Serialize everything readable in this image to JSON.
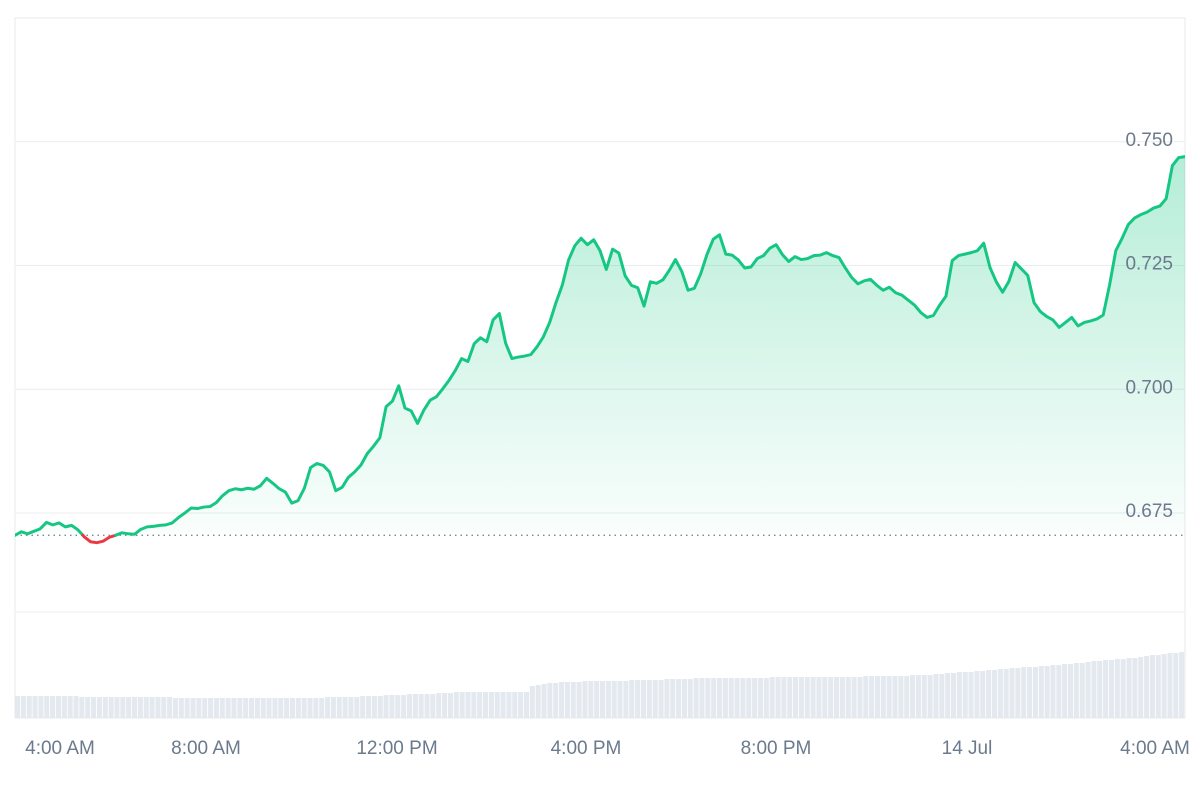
{
  "chart_data": {
    "type": "line",
    "baseline": 0.6705,
    "ylim": [
      0.655,
      0.775
    ],
    "y_ticks": [
      {
        "value": 0.675,
        "label": "0.675"
      },
      {
        "value": 0.7,
        "label": "0.700"
      },
      {
        "value": 0.725,
        "label": "0.725"
      },
      {
        "value": 0.75,
        "label": "0.750"
      }
    ],
    "x_ticks": [
      {
        "label": "4:00 AM"
      },
      {
        "label": "8:00 AM"
      },
      {
        "label": "12:00 PM"
      },
      {
        "label": "4:00 PM"
      },
      {
        "label": "8:00 PM"
      },
      {
        "label": "14 Jul"
      },
      {
        "label": "4:00 AM"
      }
    ],
    "series": [
      {
        "values": [
          0.6705,
          0.6712,
          0.6708,
          0.6713,
          0.6718,
          0.6731,
          0.6726,
          0.673,
          0.6722,
          0.6725,
          0.6716,
          0.6702,
          0.6692,
          0.669,
          0.6693,
          0.6701,
          0.6705,
          0.671,
          0.6708,
          0.6707,
          0.6717,
          0.6722,
          0.6723,
          0.6725,
          0.6726,
          0.673,
          0.6741,
          0.675,
          0.676,
          0.6759,
          0.6762,
          0.6763,
          0.6771,
          0.6785,
          0.6795,
          0.6799,
          0.6797,
          0.68,
          0.6798,
          0.6805,
          0.682,
          0.681,
          0.6799,
          0.6792,
          0.677,
          0.6775,
          0.68,
          0.6842,
          0.685,
          0.6846,
          0.6833,
          0.6795,
          0.6802,
          0.6822,
          0.6833,
          0.6847,
          0.687,
          0.6885,
          0.6902,
          0.6965,
          0.6976,
          0.7007,
          0.6962,
          0.6956,
          0.6931,
          0.6958,
          0.6978,
          0.6985,
          0.7001,
          0.7018,
          0.7038,
          0.7062,
          0.7056,
          0.7092,
          0.7104,
          0.7096,
          0.714,
          0.7153,
          0.7093,
          0.7062,
          0.7065,
          0.7067,
          0.707,
          0.7086,
          0.7106,
          0.7135,
          0.7175,
          0.721,
          0.7261,
          0.729,
          0.7305,
          0.7292,
          0.7302,
          0.728,
          0.7242,
          0.7283,
          0.7275,
          0.7229,
          0.721,
          0.7205,
          0.7168,
          0.7217,
          0.7214,
          0.7221,
          0.724,
          0.7262,
          0.7238,
          0.72,
          0.7204,
          0.7233,
          0.7272,
          0.7303,
          0.7312,
          0.7273,
          0.7271,
          0.7261,
          0.7245,
          0.7247,
          0.7264,
          0.727,
          0.7285,
          0.7292,
          0.7272,
          0.7258,
          0.7268,
          0.7262,
          0.7264,
          0.727,
          0.7271,
          0.7276,
          0.727,
          0.7266,
          0.7245,
          0.7226,
          0.7213,
          0.7219,
          0.7222,
          0.721,
          0.72,
          0.7206,
          0.7195,
          0.719,
          0.718,
          0.717,
          0.7155,
          0.7145,
          0.7149,
          0.717,
          0.7188,
          0.726,
          0.727,
          0.7273,
          0.7276,
          0.728,
          0.7295,
          0.7246,
          0.7217,
          0.7196,
          0.7218,
          0.7256,
          0.7243,
          0.723,
          0.7175,
          0.7157,
          0.7147,
          0.714,
          0.7125,
          0.7135,
          0.7145,
          0.7128,
          0.7135,
          0.7138,
          0.7142,
          0.715,
          0.721,
          0.728,
          0.7305,
          0.7333,
          0.7346,
          0.7353,
          0.7358,
          0.7366,
          0.737,
          0.7385,
          0.7452,
          0.7468,
          0.747
        ]
      }
    ],
    "volume": [
      22,
      22,
      22,
      22,
      22,
      22,
      22,
      22,
      22,
      22,
      22,
      21,
      21,
      21,
      21,
      21,
      21,
      21,
      21,
      21,
      21,
      21,
      21,
      21,
      21,
      21,
      21,
      20,
      20,
      20,
      20,
      20,
      20,
      20,
      20,
      20,
      20,
      20,
      20,
      20,
      20,
      20,
      20,
      20,
      20,
      20,
      20,
      20,
      20,
      20,
      20,
      20,
      20,
      21,
      21,
      21,
      21,
      21,
      21,
      22,
      22,
      22,
      22,
      23,
      23,
      23,
      23,
      24,
      24,
      24,
      24,
      24,
      25,
      25,
      25,
      26,
      26,
      26,
      26,
      26,
      26,
      26,
      26,
      26,
      26,
      26,
      26,
      26,
      32,
      33,
      34,
      35,
      35,
      36,
      36,
      36,
      36,
      37,
      37,
      37,
      37,
      37,
      37,
      37,
      37,
      38,
      38,
      38,
      38,
      38,
      38,
      39,
      39,
      39,
      39,
      39,
      40,
      40,
      40,
      40,
      40,
      40,
      40,
      40,
      40,
      40,
      40,
      40,
      40,
      41,
      41,
      41,
      41,
      41,
      41,
      41,
      41,
      41,
      41,
      41,
      41,
      41,
      41,
      41,
      41,
      42,
      42,
      42,
      42,
      42,
      42,
      42,
      42,
      43,
      43,
      43,
      43,
      44,
      44,
      45,
      45,
      46,
      46,
      46,
      47,
      47,
      48,
      48,
      49,
      49,
      50,
      50,
      51,
      51,
      51,
      52,
      52,
      53,
      53,
      54,
      54,
      55,
      55,
      56,
      57,
      57,
      58,
      58,
      59,
      59,
      60,
      60,
      61,
      62,
      63,
      63,
      64,
      65,
      65,
      66
    ],
    "line_color_up": "#16c784",
    "line_color_down": "#ea3943",
    "fill_color": "#16c784",
    "grid": true
  }
}
